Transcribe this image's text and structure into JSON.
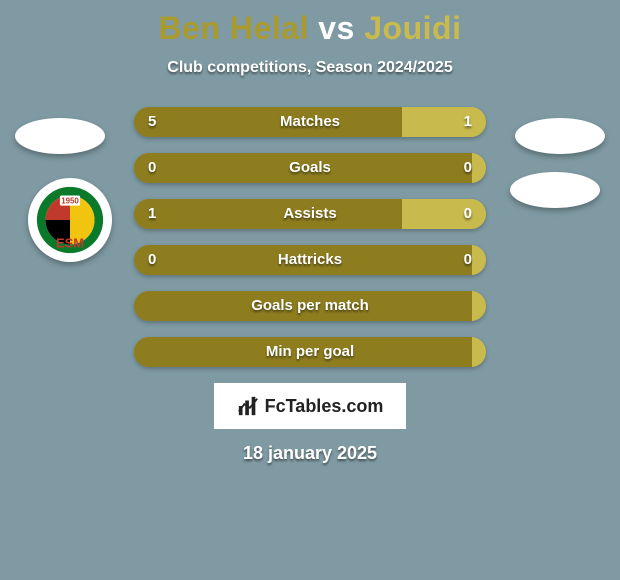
{
  "background_color": "#7f9aa3",
  "title": {
    "player1": "Ben Helal",
    "vs": "vs",
    "player2": "Jouidi",
    "color_p1": "#a89a2f",
    "color_vs": "#ffffff",
    "color_p2": "#c9ba4d"
  },
  "subtitle": "Club competitions, Season 2024/2025",
  "bars": {
    "track_color": "#a2a04b",
    "left_fill_color": "#8e7d1f",
    "right_fill_color": "#c9ba4d",
    "rows": [
      {
        "label": "Matches",
        "left": "5",
        "right": "1",
        "left_pct": 76,
        "right_pct": 24
      },
      {
        "label": "Goals",
        "left": "0",
        "right": "0",
        "left_pct": 96,
        "right_pct": 4
      },
      {
        "label": "Assists",
        "left": "1",
        "right": "0",
        "left_pct": 76,
        "right_pct": 24
      },
      {
        "label": "Hattricks",
        "left": "0",
        "right": "0",
        "left_pct": 96,
        "right_pct": 4
      },
      {
        "label": "Goals per match",
        "left": "",
        "right": "",
        "left_pct": 96,
        "right_pct": 4
      },
      {
        "label": "Min per goal",
        "left": "",
        "right": "",
        "left_pct": 96,
        "right_pct": 4
      }
    ]
  },
  "club_badge": {
    "outer_bg": "#ffffff",
    "ring_green": "#0a7a2a",
    "ring_red": "#c0392b",
    "center_black": "#000000",
    "center_yellow": "#f1c40f",
    "year": "1950",
    "initials": "ESM"
  },
  "watermark": "FcTables.com",
  "date": "18 january 2025"
}
